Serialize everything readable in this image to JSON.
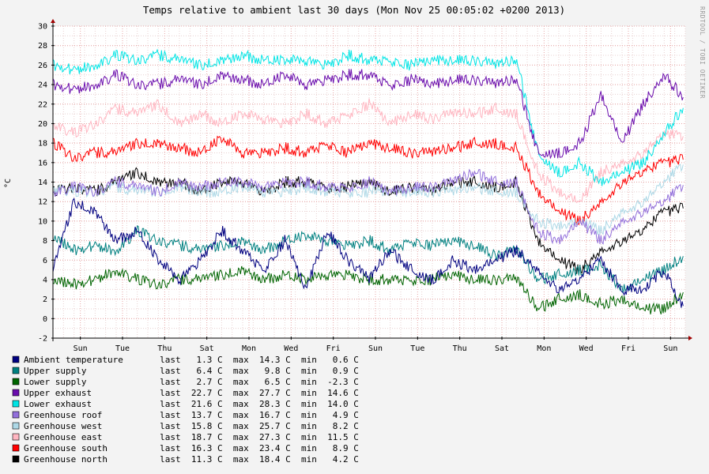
{
  "chart_data": {
    "type": "line",
    "title": "Temps relative to ambient last 30 days (Mon Nov 25 00:05:02 +0200 2013)",
    "ylabel": "°C",
    "watermark": "RRDTOOL / TOBI OETIKER",
    "ylim": [
      -2,
      30
    ],
    "yticks": [
      -2,
      0,
      2,
      4,
      6,
      8,
      10,
      12,
      14,
      16,
      18,
      20,
      22,
      24,
      26,
      28,
      30
    ],
    "xlim": [
      0,
      30
    ],
    "xticks": [
      {
        "x": 1.3,
        "label": "Sun"
      },
      {
        "x": 3.3,
        "label": "Tue"
      },
      {
        "x": 5.3,
        "label": "Thu"
      },
      {
        "x": 7.3,
        "label": "Sat"
      },
      {
        "x": 9.3,
        "label": "Mon"
      },
      {
        "x": 11.3,
        "label": "Wed"
      },
      {
        "x": 13.3,
        "label": "Fri"
      },
      {
        "x": 15.3,
        "label": "Sun"
      },
      {
        "x": 17.3,
        "label": "Tue"
      },
      {
        "x": 19.3,
        "label": "Thu"
      },
      {
        "x": 21.3,
        "label": "Sat"
      },
      {
        "x": 23.3,
        "label": "Mon"
      },
      {
        "x": 25.3,
        "label": "Wed"
      },
      {
        "x": 27.3,
        "label": "Fri"
      },
      {
        "x": 29.3,
        "label": "Sun"
      }
    ],
    "grid": true,
    "legend_position": "bottom",
    "series": [
      {
        "name": "Ambient temperature",
        "color": "#000080",
        "last": "1.3 C",
        "max": "14.3 C",
        "min": "0.6 C",
        "x": [
          0,
          1,
          2,
          3,
          4,
          5,
          6,
          7,
          8,
          9,
          10,
          11,
          12,
          13,
          14,
          15,
          16,
          17,
          18,
          19,
          20,
          21,
          22,
          23,
          24,
          25,
          26,
          27,
          28,
          29,
          29.9
        ],
        "values": [
          5,
          12,
          11,
          8,
          9,
          6,
          4,
          6,
          9,
          7,
          5,
          8,
          3,
          9,
          6,
          4,
          7,
          5,
          4,
          6,
          5,
          6,
          7,
          5,
          3,
          4,
          6,
          3,
          3,
          5,
          1.3
        ]
      },
      {
        "name": "Upper supply",
        "color": "#008080",
        "last": "6.4 C",
        "max": "9.8 C",
        "min": "0.9 C",
        "x": [
          0,
          1,
          2,
          3,
          4,
          5,
          6,
          7,
          8,
          9,
          10,
          11,
          12,
          13,
          14,
          15,
          16,
          17,
          18,
          19,
          20,
          21,
          22,
          23,
          24,
          25,
          26,
          27,
          28,
          29,
          29.9
        ],
        "values": [
          8.5,
          7,
          7.5,
          7,
          9,
          8,
          7.5,
          7,
          7.5,
          8,
          7,
          8,
          8.5,
          8,
          7.5,
          8,
          7,
          8,
          7.5,
          8,
          7.5,
          6.5,
          7,
          4,
          4.5,
          5,
          5.5,
          3,
          4,
          5,
          6.4
        ]
      },
      {
        "name": "Lower supply",
        "color": "#006400",
        "last": "2.7 C",
        "max": "6.5 C",
        "min": "-2.3 C",
        "x": [
          0,
          1,
          2,
          3,
          4,
          5,
          6,
          7,
          8,
          9,
          10,
          11,
          12,
          13,
          14,
          15,
          16,
          17,
          18,
          19,
          20,
          21,
          22,
          23,
          24,
          25,
          26,
          27,
          28,
          29,
          29.9
        ],
        "values": [
          4,
          3.5,
          4,
          5,
          4,
          3.5,
          4,
          4,
          4.5,
          5,
          4,
          4.5,
          4,
          4.5,
          4.5,
          4,
          4,
          4,
          4,
          4.5,
          4,
          4,
          4,
          1,
          2,
          2.5,
          1.5,
          2,
          1,
          1,
          2.7
        ]
      },
      {
        "name": "Upper exhaust",
        "color": "#6a0dad",
        "last": "22.7 C",
        "max": "27.7 C",
        "min": "14.6 C",
        "x": [
          0,
          1,
          2,
          3,
          4,
          5,
          6,
          7,
          8,
          9,
          10,
          11,
          12,
          13,
          14,
          15,
          16,
          17,
          18,
          19,
          20,
          21,
          22,
          23,
          24,
          25,
          26,
          27,
          28,
          29,
          29.9
        ],
        "values": [
          24,
          23.5,
          24,
          25,
          24,
          24,
          24.5,
          24,
          25,
          24.5,
          24,
          25,
          24,
          24.5,
          25,
          25,
          24,
          24.5,
          24,
          24.5,
          24.5,
          24,
          24.5,
          17,
          17,
          18,
          23,
          18,
          22,
          25,
          22.7
        ]
      },
      {
        "name": "Lower exhaust",
        "color": "#00e5e5",
        "last": "21.6 C",
        "max": "28.3 C",
        "min": "14.0 C",
        "x": [
          0,
          1,
          2,
          3,
          4,
          5,
          6,
          7,
          8,
          9,
          10,
          11,
          12,
          13,
          14,
          15,
          16,
          17,
          18,
          19,
          20,
          21,
          22,
          23,
          24,
          25,
          26,
          27,
          28,
          29,
          29.9
        ],
        "values": [
          26,
          25.5,
          26,
          27,
          26.5,
          27,
          26.5,
          26,
          26.5,
          27,
          26.5,
          26.5,
          26.5,
          26,
          27,
          26.5,
          26.5,
          26,
          26.5,
          26.5,
          26.5,
          26,
          26.5,
          17,
          15,
          16,
          14,
          15,
          16,
          19,
          21.6
        ]
      },
      {
        "name": "Greenhouse roof",
        "color": "#9370db",
        "last": "13.7 C",
        "max": "16.7 C",
        "min": "4.9 C",
        "x": [
          0,
          1,
          2,
          3,
          4,
          5,
          6,
          7,
          8,
          9,
          10,
          11,
          12,
          13,
          14,
          15,
          16,
          17,
          18,
          19,
          20,
          21,
          22,
          23,
          24,
          25,
          26,
          27,
          28,
          29,
          29.9
        ],
        "values": [
          13,
          13.5,
          13,
          14,
          13.5,
          13,
          14,
          13.5,
          14,
          14,
          13.5,
          14,
          14,
          13.5,
          13.5,
          14,
          13,
          13.5,
          13.5,
          14,
          15,
          14,
          14,
          9,
          8,
          10,
          8,
          10,
          11,
          12,
          13.7
        ]
      },
      {
        "name": "Greenhouse west",
        "color": "#add8e6",
        "last": "15.8 C",
        "max": "25.7 C",
        "min": "8.2 C",
        "x": [
          0,
          1,
          2,
          3,
          4,
          5,
          6,
          7,
          8,
          9,
          10,
          11,
          12,
          13,
          14,
          15,
          16,
          17,
          18,
          19,
          20,
          21,
          22,
          23,
          24,
          25,
          26,
          27,
          28,
          29,
          29.9
        ],
        "values": [
          13.5,
          13,
          13,
          13.5,
          13,
          13,
          13.5,
          13,
          13,
          13.5,
          13,
          13,
          13.5,
          13,
          13,
          13,
          13,
          13,
          13,
          13,
          13.5,
          13,
          13,
          10,
          9.5,
          10,
          9,
          11,
          12,
          14,
          15.8
        ]
      },
      {
        "name": "Greenhouse east",
        "color": "#ffb6c1",
        "last": "18.7 C",
        "max": "27.3 C",
        "min": "11.5 C",
        "x": [
          0,
          1,
          2,
          3,
          4,
          5,
          6,
          7,
          8,
          9,
          10,
          11,
          12,
          13,
          14,
          15,
          16,
          17,
          18,
          19,
          20,
          21,
          22,
          23,
          24,
          25,
          26,
          27,
          28,
          29,
          29.9
        ],
        "values": [
          20,
          19,
          20,
          21.5,
          21,
          22,
          20,
          21,
          20,
          21,
          20.5,
          20,
          21,
          20,
          21,
          22,
          20,
          21,
          20.5,
          21,
          21,
          21.5,
          21,
          15,
          13,
          12,
          15,
          16,
          17,
          19,
          18.7
        ]
      },
      {
        "name": "Greenhouse south",
        "color": "#ff0000",
        "last": "16.3 C",
        "max": "23.4 C",
        "min": "8.9 C",
        "x": [
          0,
          1,
          2,
          3,
          4,
          5,
          6,
          7,
          8,
          9,
          10,
          11,
          12,
          13,
          14,
          15,
          16,
          17,
          18,
          19,
          20,
          21,
          22,
          23,
          24,
          25,
          26,
          27,
          28,
          29,
          29.9
        ],
        "values": [
          18,
          16.5,
          17,
          17,
          18,
          18,
          17.5,
          17,
          18.5,
          17,
          17,
          17.5,
          17,
          18,
          17,
          18,
          17.5,
          17,
          17,
          17.5,
          18,
          18,
          17.5,
          13,
          11,
          10,
          12,
          14,
          15,
          16,
          16.3
        ]
      },
      {
        "name": "Greenhouse north",
        "color": "#000000",
        "last": "11.3 C",
        "max": "18.4 C",
        "min": "4.2 C",
        "x": [
          0,
          1,
          2,
          3,
          4,
          5,
          6,
          7,
          8,
          9,
          10,
          11,
          12,
          13,
          14,
          15,
          16,
          17,
          18,
          19,
          20,
          21,
          22,
          23,
          24,
          25,
          26,
          27,
          28,
          29,
          29.9
        ],
        "values": [
          13,
          13.5,
          13,
          14,
          15,
          14,
          14,
          13,
          14,
          14,
          13,
          14,
          14,
          13.5,
          13.5,
          14,
          13,
          13.5,
          13,
          14,
          14,
          13.5,
          14,
          8,
          6,
          5,
          7,
          8,
          9,
          11,
          11.3
        ]
      }
    ]
  }
}
